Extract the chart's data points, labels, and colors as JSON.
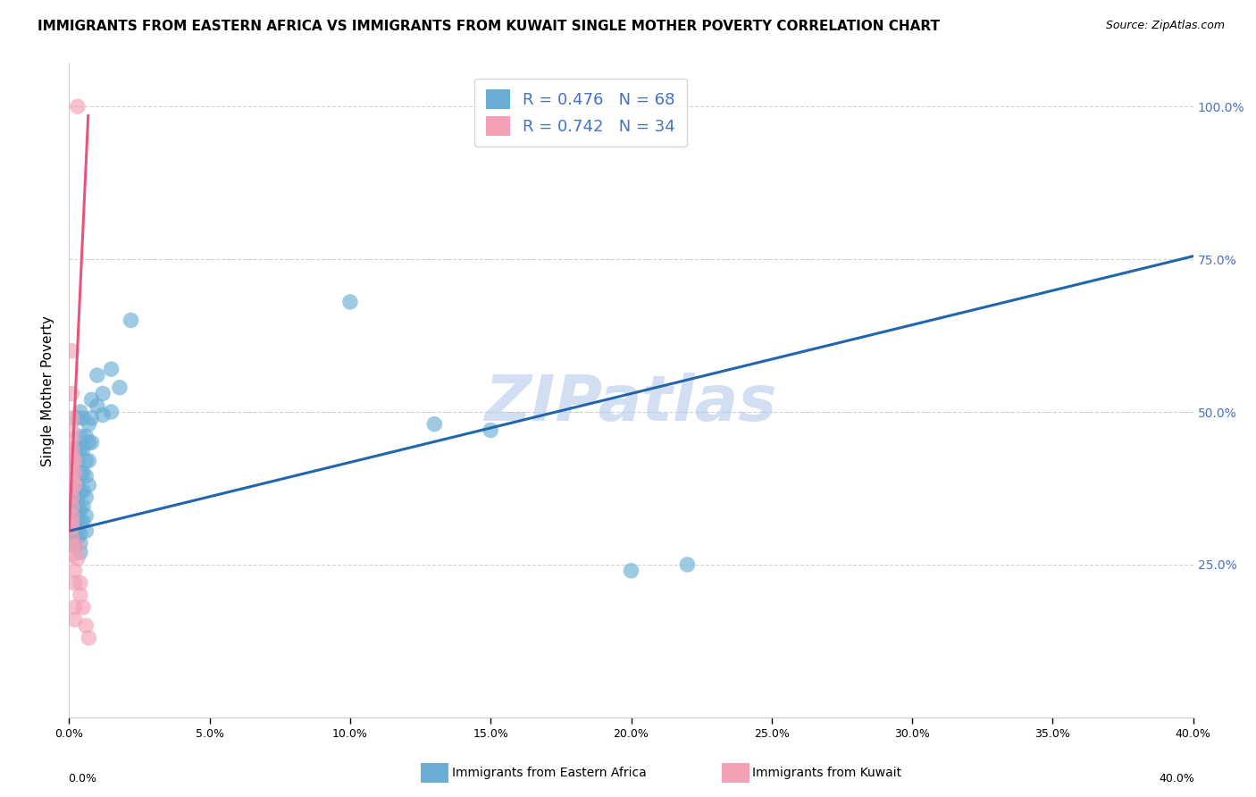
{
  "title": "IMMIGRANTS FROM EASTERN AFRICA VS IMMIGRANTS FROM KUWAIT SINGLE MOTHER POVERTY CORRELATION CHART",
  "source": "Source: ZipAtlas.com",
  "ylabel": "Single Mother Poverty",
  "legend_blue_r": "R = 0.476",
  "legend_blue_n": "N = 68",
  "legend_pink_r": "R = 0.742",
  "legend_pink_n": "N = 34",
  "watermark": "ZIPatlas",
  "blue_scatter": [
    [
      0.001,
      0.355
    ],
    [
      0.001,
      0.34
    ],
    [
      0.001,
      0.32
    ],
    [
      0.001,
      0.31
    ],
    [
      0.001,
      0.305
    ],
    [
      0.001,
      0.295
    ],
    [
      0.001,
      0.29
    ],
    [
      0.001,
      0.285
    ],
    [
      0.002,
      0.36
    ],
    [
      0.002,
      0.345
    ],
    [
      0.002,
      0.33
    ],
    [
      0.002,
      0.32
    ],
    [
      0.002,
      0.31
    ],
    [
      0.002,
      0.3
    ],
    [
      0.002,
      0.29
    ],
    [
      0.002,
      0.28
    ],
    [
      0.003,
      0.49
    ],
    [
      0.003,
      0.44
    ],
    [
      0.003,
      0.42
    ],
    [
      0.003,
      0.38
    ],
    [
      0.003,
      0.36
    ],
    [
      0.003,
      0.35
    ],
    [
      0.003,
      0.335
    ],
    [
      0.003,
      0.32
    ],
    [
      0.003,
      0.31
    ],
    [
      0.003,
      0.295
    ],
    [
      0.004,
      0.5
    ],
    [
      0.004,
      0.46
    ],
    [
      0.004,
      0.44
    ],
    [
      0.004,
      0.4
    ],
    [
      0.004,
      0.37
    ],
    [
      0.004,
      0.34
    ],
    [
      0.004,
      0.32
    ],
    [
      0.004,
      0.3
    ],
    [
      0.004,
      0.285
    ],
    [
      0.004,
      0.27
    ],
    [
      0.005,
      0.49
    ],
    [
      0.005,
      0.44
    ],
    [
      0.005,
      0.4
    ],
    [
      0.005,
      0.37
    ],
    [
      0.005,
      0.345
    ],
    [
      0.005,
      0.32
    ],
    [
      0.006,
      0.46
    ],
    [
      0.006,
      0.42
    ],
    [
      0.006,
      0.395
    ],
    [
      0.006,
      0.36
    ],
    [
      0.006,
      0.33
    ],
    [
      0.006,
      0.305
    ],
    [
      0.007,
      0.48
    ],
    [
      0.007,
      0.45
    ],
    [
      0.007,
      0.42
    ],
    [
      0.007,
      0.38
    ],
    [
      0.008,
      0.52
    ],
    [
      0.008,
      0.49
    ],
    [
      0.008,
      0.45
    ],
    [
      0.01,
      0.56
    ],
    [
      0.01,
      0.51
    ],
    [
      0.012,
      0.53
    ],
    [
      0.012,
      0.495
    ],
    [
      0.015,
      0.57
    ],
    [
      0.015,
      0.5
    ],
    [
      0.018,
      0.54
    ],
    [
      0.022,
      0.65
    ],
    [
      0.1,
      0.68
    ],
    [
      0.13,
      0.48
    ],
    [
      0.15,
      0.47
    ],
    [
      0.2,
      0.24
    ],
    [
      0.22,
      0.25
    ]
  ],
  "pink_scatter": [
    [
      0.001,
      0.6
    ],
    [
      0.001,
      0.53
    ],
    [
      0.001,
      0.49
    ],
    [
      0.001,
      0.47
    ],
    [
      0.001,
      0.455
    ],
    [
      0.001,
      0.44
    ],
    [
      0.001,
      0.43
    ],
    [
      0.001,
      0.42
    ],
    [
      0.001,
      0.405
    ],
    [
      0.001,
      0.39
    ],
    [
      0.001,
      0.375
    ],
    [
      0.001,
      0.36
    ],
    [
      0.001,
      0.345
    ],
    [
      0.001,
      0.33
    ],
    [
      0.001,
      0.32
    ],
    [
      0.001,
      0.31
    ],
    [
      0.001,
      0.295
    ],
    [
      0.001,
      0.28
    ],
    [
      0.001,
      0.265
    ],
    [
      0.002,
      0.42
    ],
    [
      0.002,
      0.4
    ],
    [
      0.002,
      0.38
    ],
    [
      0.002,
      0.24
    ],
    [
      0.002,
      0.22
    ],
    [
      0.002,
      0.18
    ],
    [
      0.002,
      0.16
    ],
    [
      0.003,
      1.0
    ],
    [
      0.003,
      0.28
    ],
    [
      0.003,
      0.26
    ],
    [
      0.004,
      0.22
    ],
    [
      0.004,
      0.2
    ],
    [
      0.005,
      0.18
    ],
    [
      0.006,
      0.15
    ],
    [
      0.007,
      0.13
    ]
  ],
  "blue_line_x": [
    0.0,
    0.4
  ],
  "blue_line_y": [
    0.305,
    0.755
  ],
  "pink_line_x": [
    0.0,
    0.0068
  ],
  "pink_line_y": [
    0.305,
    0.985
  ],
  "blue_color": "#6aaed6",
  "pink_color": "#f4a0b5",
  "blue_line_color": "#2166ac",
  "pink_line_color": "#e8547a",
  "grid_color": "#cccccc",
  "background_color": "#ffffff",
  "title_fontsize": 11,
  "source_fontsize": 9,
  "watermark_color": "#aec6e8",
  "xlim": [
    0.0,
    0.4
  ],
  "ylim": [
    0.0,
    1.07
  ],
  "xticks": [
    0.0,
    0.05,
    0.1,
    0.15,
    0.2,
    0.25,
    0.3,
    0.35,
    0.4
  ],
  "yticks_right": [
    1.0,
    0.75,
    0.5,
    0.25
  ],
  "bottom_label_blue": "Immigrants from Eastern Africa",
  "bottom_label_pink": "Immigrants from Kuwait"
}
